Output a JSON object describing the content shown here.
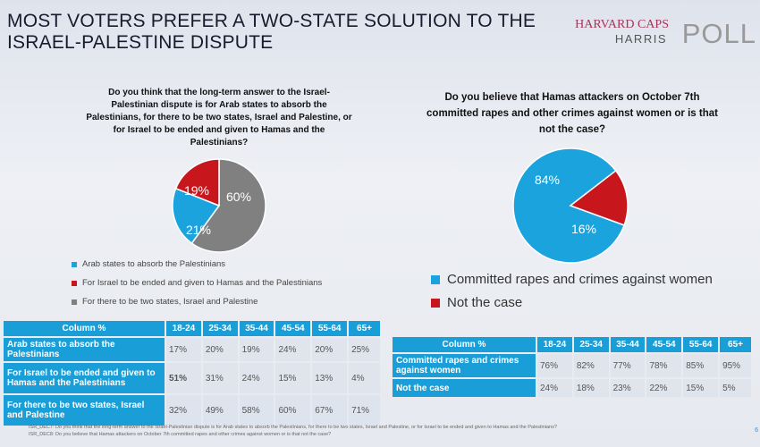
{
  "title": "MOST VOTERS PREFER A TWO-STATE SOLUTION TO THE ISRAEL-PALESTINE DISPUTE",
  "logo": {
    "line1": "HARVARD CAPS",
    "line2": "HARRIS",
    "line3": "POLL"
  },
  "chart_data": [
    {
      "type": "pie",
      "title": "Do you think that the long-term answer to the Israel-Palestinian dispute is for Arab states to absorb the Palestinians, for there to be two states, Israel and Palestine, or for Israel to be ended and given to Hamas and the Palestinians?",
      "slices": [
        {
          "label": "For there to be two states, Israel and Palestine",
          "value": 60,
          "display": "60%",
          "color": "#808080"
        },
        {
          "label": "Arab states to absorb the Palestinians",
          "value": 21,
          "display": "21%",
          "color": "#1aa3dc"
        },
        {
          "label": "For Israel to be ended and given to Hamas and the Palestinians",
          "value": 19,
          "display": "19%",
          "color": "#c8161d"
        }
      ],
      "legend": [
        "Arab states to absorb the Palestinians",
        "For Israel to be ended and given to Hamas and the Palestinians",
        "For there to be two states, Israel and Palestine"
      ],
      "legend_colors": [
        "#1aa3dc",
        "#c8161d",
        "#808080"
      ],
      "legend_position": "bottom"
    },
    {
      "type": "pie",
      "title": "Do you believe that Hamas attackers on October 7th committed rapes and other crimes against women or is that not the case?",
      "slices": [
        {
          "label": "Committed rapes and crimes against women",
          "value": 84,
          "display": "84%",
          "color": "#1aa3dc"
        },
        {
          "label": "Not the case",
          "value": 16,
          "display": "16%",
          "color": "#c8161d"
        }
      ],
      "legend": [
        "Committed rapes and crimes against women",
        "Not the case"
      ],
      "legend_colors": [
        "#1aa3dc",
        "#c8161d"
      ],
      "legend_position": "bottom"
    },
    {
      "type": "table",
      "columns": [
        "Column %",
        "18-24",
        "25-34",
        "35-44",
        "45-54",
        "55-64",
        "65+"
      ],
      "rows": [
        {
          "label": "Arab states to absorb the Palestinians",
          "values": [
            "17%",
            "20%",
            "19%",
            "24%",
            "20%",
            "25%"
          ]
        },
        {
          "label": "For Israel to be ended and given to Hamas and the Palestinians",
          "values": [
            "51%",
            "31%",
            "24%",
            "15%",
            "13%",
            "4%"
          ]
        },
        {
          "label": "For there to be two states, Israel and Palestine",
          "values": [
            "32%",
            "49%",
            "58%",
            "60%",
            "67%",
            "71%"
          ]
        }
      ]
    },
    {
      "type": "table",
      "columns": [
        "Column %",
        "18-24",
        "25-34",
        "35-44",
        "45-54",
        "55-64",
        "65+"
      ],
      "rows": [
        {
          "label": "Committed rapes and crimes against women",
          "values": [
            "76%",
            "82%",
            "77%",
            "78%",
            "85%",
            "95%"
          ]
        },
        {
          "label": "Not the case",
          "values": [
            "24%",
            "18%",
            "23%",
            "22%",
            "15%",
            "5%"
          ]
        }
      ]
    }
  ],
  "footnotes": [
    "ISR_DEC7: Do you think that the long-term answer to the Israel-Palestinian dispute is for Arab states to absorb the Palestinians, for there to be two states, Israel and Palestine, or for Israel to be ended and given to Hamas and the Palestinians?",
    "ISR_DEC8: Do you believe that Hamas attackers on October 7th committed rapes and other crimes against women or is that not the case?"
  ],
  "page_number": "6"
}
